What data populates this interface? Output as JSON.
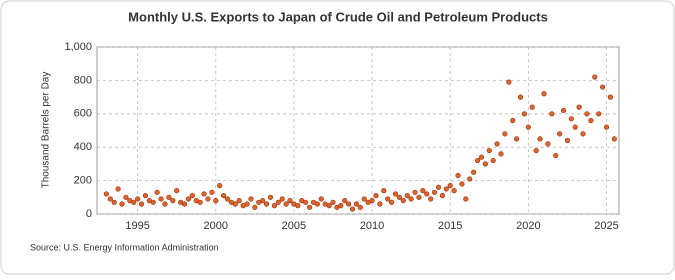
{
  "chart_data": {
    "type": "scatter",
    "title": "Monthly U.S. Exports to Japan of Crude Oil and Petroleum Products",
    "y_label": "Thousand Barrels per Day",
    "source": "Source: U.S. Energy Information Administration",
    "color": "#e0642a",
    "grid": true,
    "xlim": [
      1992.4,
      2025.8
    ],
    "ylim": [
      0,
      1000
    ],
    "xticks": [
      1995,
      2000,
      2005,
      2010,
      2015,
      2020,
      2025
    ],
    "yticks": [
      0,
      200,
      400,
      600,
      800,
      {
        "value": 1000,
        "label": "1,000"
      }
    ],
    "x": [
      1993,
      1993.25,
      1993.5,
      1993.75,
      1994,
      1994.25,
      1994.5,
      1994.75,
      1995,
      1995.25,
      1995.5,
      1995.75,
      1996,
      1996.25,
      1996.5,
      1996.75,
      1997,
      1997.25,
      1997.5,
      1997.75,
      1998,
      1998.25,
      1998.5,
      1998.75,
      1999,
      1999.25,
      1999.5,
      1999.75,
      2000,
      2000.25,
      2000.5,
      2000.75,
      2001,
      2001.25,
      2001.5,
      2001.75,
      2002,
      2002.25,
      2002.5,
      2002.75,
      2003,
      2003.25,
      2003.5,
      2003.75,
      2004,
      2004.25,
      2004.5,
      2004.75,
      2005,
      2005.25,
      2005.5,
      2005.75,
      2006,
      2006.25,
      2006.5,
      2006.75,
      2007,
      2007.25,
      2007.5,
      2007.75,
      2008,
      2008.25,
      2008.5,
      2008.75,
      2009,
      2009.25,
      2009.5,
      2009.75,
      2010,
      2010.25,
      2010.5,
      2010.75,
      2011,
      2011.25,
      2011.5,
      2011.75,
      2012,
      2012.25,
      2012.5,
      2012.75,
      2013,
      2013.25,
      2013.5,
      2013.75,
      2014,
      2014.25,
      2014.5,
      2014.75,
      2015,
      2015.25,
      2015.5,
      2015.75,
      2016,
      2016.25,
      2016.5,
      2016.75,
      2017,
      2017.25,
      2017.5,
      2017.75,
      2018,
      2018.25,
      2018.5,
      2018.75,
      2019,
      2019.25,
      2019.5,
      2019.75,
      2020,
      2020.25,
      2020.5,
      2020.75,
      2021,
      2021.25,
      2021.5,
      2021.75,
      2022,
      2022.25,
      2022.5,
      2022.75,
      2023,
      2023.25,
      2023.5,
      2023.75,
      2024,
      2024.25,
      2024.5,
      2024.75,
      2025,
      2025.25,
      2025.5
    ],
    "values": [
      120,
      90,
      70,
      150,
      60,
      100,
      80,
      70,
      90,
      60,
      110,
      80,
      70,
      130,
      90,
      60,
      100,
      80,
      140,
      70,
      60,
      90,
      110,
      80,
      70,
      120,
      90,
      130,
      80,
      170,
      110,
      90,
      70,
      60,
      80,
      50,
      60,
      90,
      40,
      70,
      80,
      60,
      100,
      50,
      70,
      90,
      60,
      80,
      60,
      50,
      80,
      70,
      40,
      70,
      60,
      90,
      60,
      50,
      70,
      40,
      50,
      80,
      60,
      30,
      60,
      40,
      90,
      70,
      80,
      110,
      60,
      140,
      90,
      70,
      120,
      100,
      80,
      110,
      90,
      130,
      100,
      140,
      120,
      90,
      130,
      160,
      110,
      150,
      170,
      140,
      230,
      180,
      90,
      210,
      250,
      320,
      340,
      300,
      380,
      320,
      420,
      360,
      480,
      790,
      560,
      450,
      700,
      600,
      520,
      640,
      380,
      450,
      720,
      420,
      600,
      350,
      480,
      620,
      440,
      570,
      520,
      640,
      480,
      600,
      560,
      820,
      600,
      760,
      520,
      700,
      450
    ]
  }
}
